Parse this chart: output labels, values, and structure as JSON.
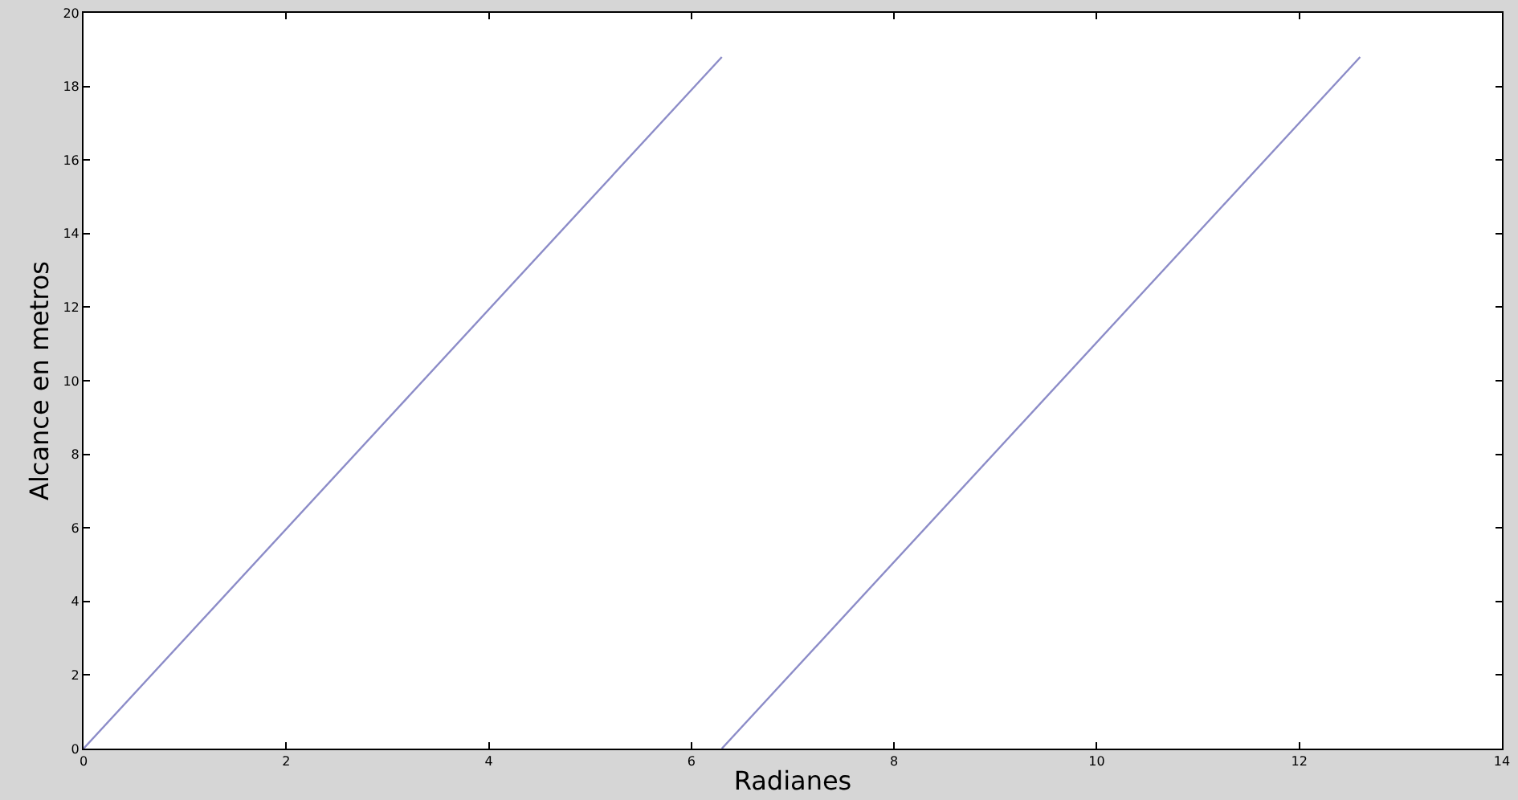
{
  "chart_data": {
    "type": "line",
    "xlabel": "Radianes",
    "ylabel": "Alcance en metros",
    "series": [
      {
        "color": "#8c8cc8",
        "x": [
          0,
          6.3
        ],
        "values": [
          0,
          18.8
        ]
      },
      {
        "color": "#8c8cc8",
        "x": [
          6.3,
          12.6
        ],
        "values": [
          0,
          18.8
        ]
      }
    ],
    "xlim": [
      0,
      14
    ],
    "xticks": [
      0,
      2,
      4,
      6,
      8,
      10,
      12,
      14
    ],
    "ylim": [
      0,
      20
    ],
    "yticks": [
      0,
      2,
      4,
      6,
      8,
      10,
      12,
      14,
      16,
      18,
      20
    ],
    "grid": false,
    "marker": "none",
    "line_style": "solid"
  }
}
